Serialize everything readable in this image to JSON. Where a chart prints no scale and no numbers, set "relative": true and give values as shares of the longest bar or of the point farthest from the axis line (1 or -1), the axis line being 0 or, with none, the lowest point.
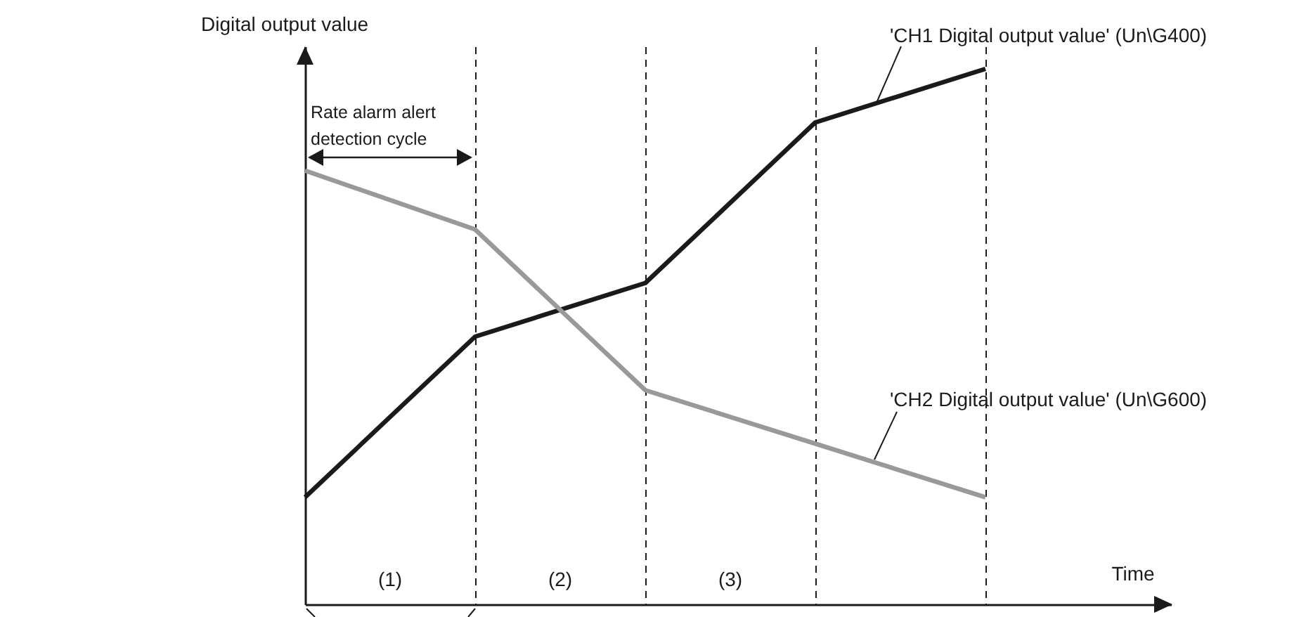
{
  "chart_data": {
    "type": "line",
    "relative": true,
    "categories": [
      null,
      null,
      null,
      null,
      null
    ],
    "xlabel": "Time",
    "ylabel": "Digital output value",
    "series": [
      {
        "name": "'CH1 Digital output value' (Un\\G400)",
        "color": "#1a1a1a",
        "values": [
          0.2,
          0.5,
          0.6,
          0.9,
          1
        ]
      },
      {
        "name": "'CH2 Digital output value' (Un\\G600)",
        "color": "#999999",
        "values": [
          0.81,
          0.7,
          0.4,
          0.3,
          0.2
        ]
      }
    ],
    "annotations": [
      "(1)",
      "(2)",
      "(3)",
      "Rate alarm alert detection cycle"
    ],
    "grid": "x",
    "legend": false,
    "marker": "none",
    "line_style": "solid",
    "tick_labels": false
  }
}
